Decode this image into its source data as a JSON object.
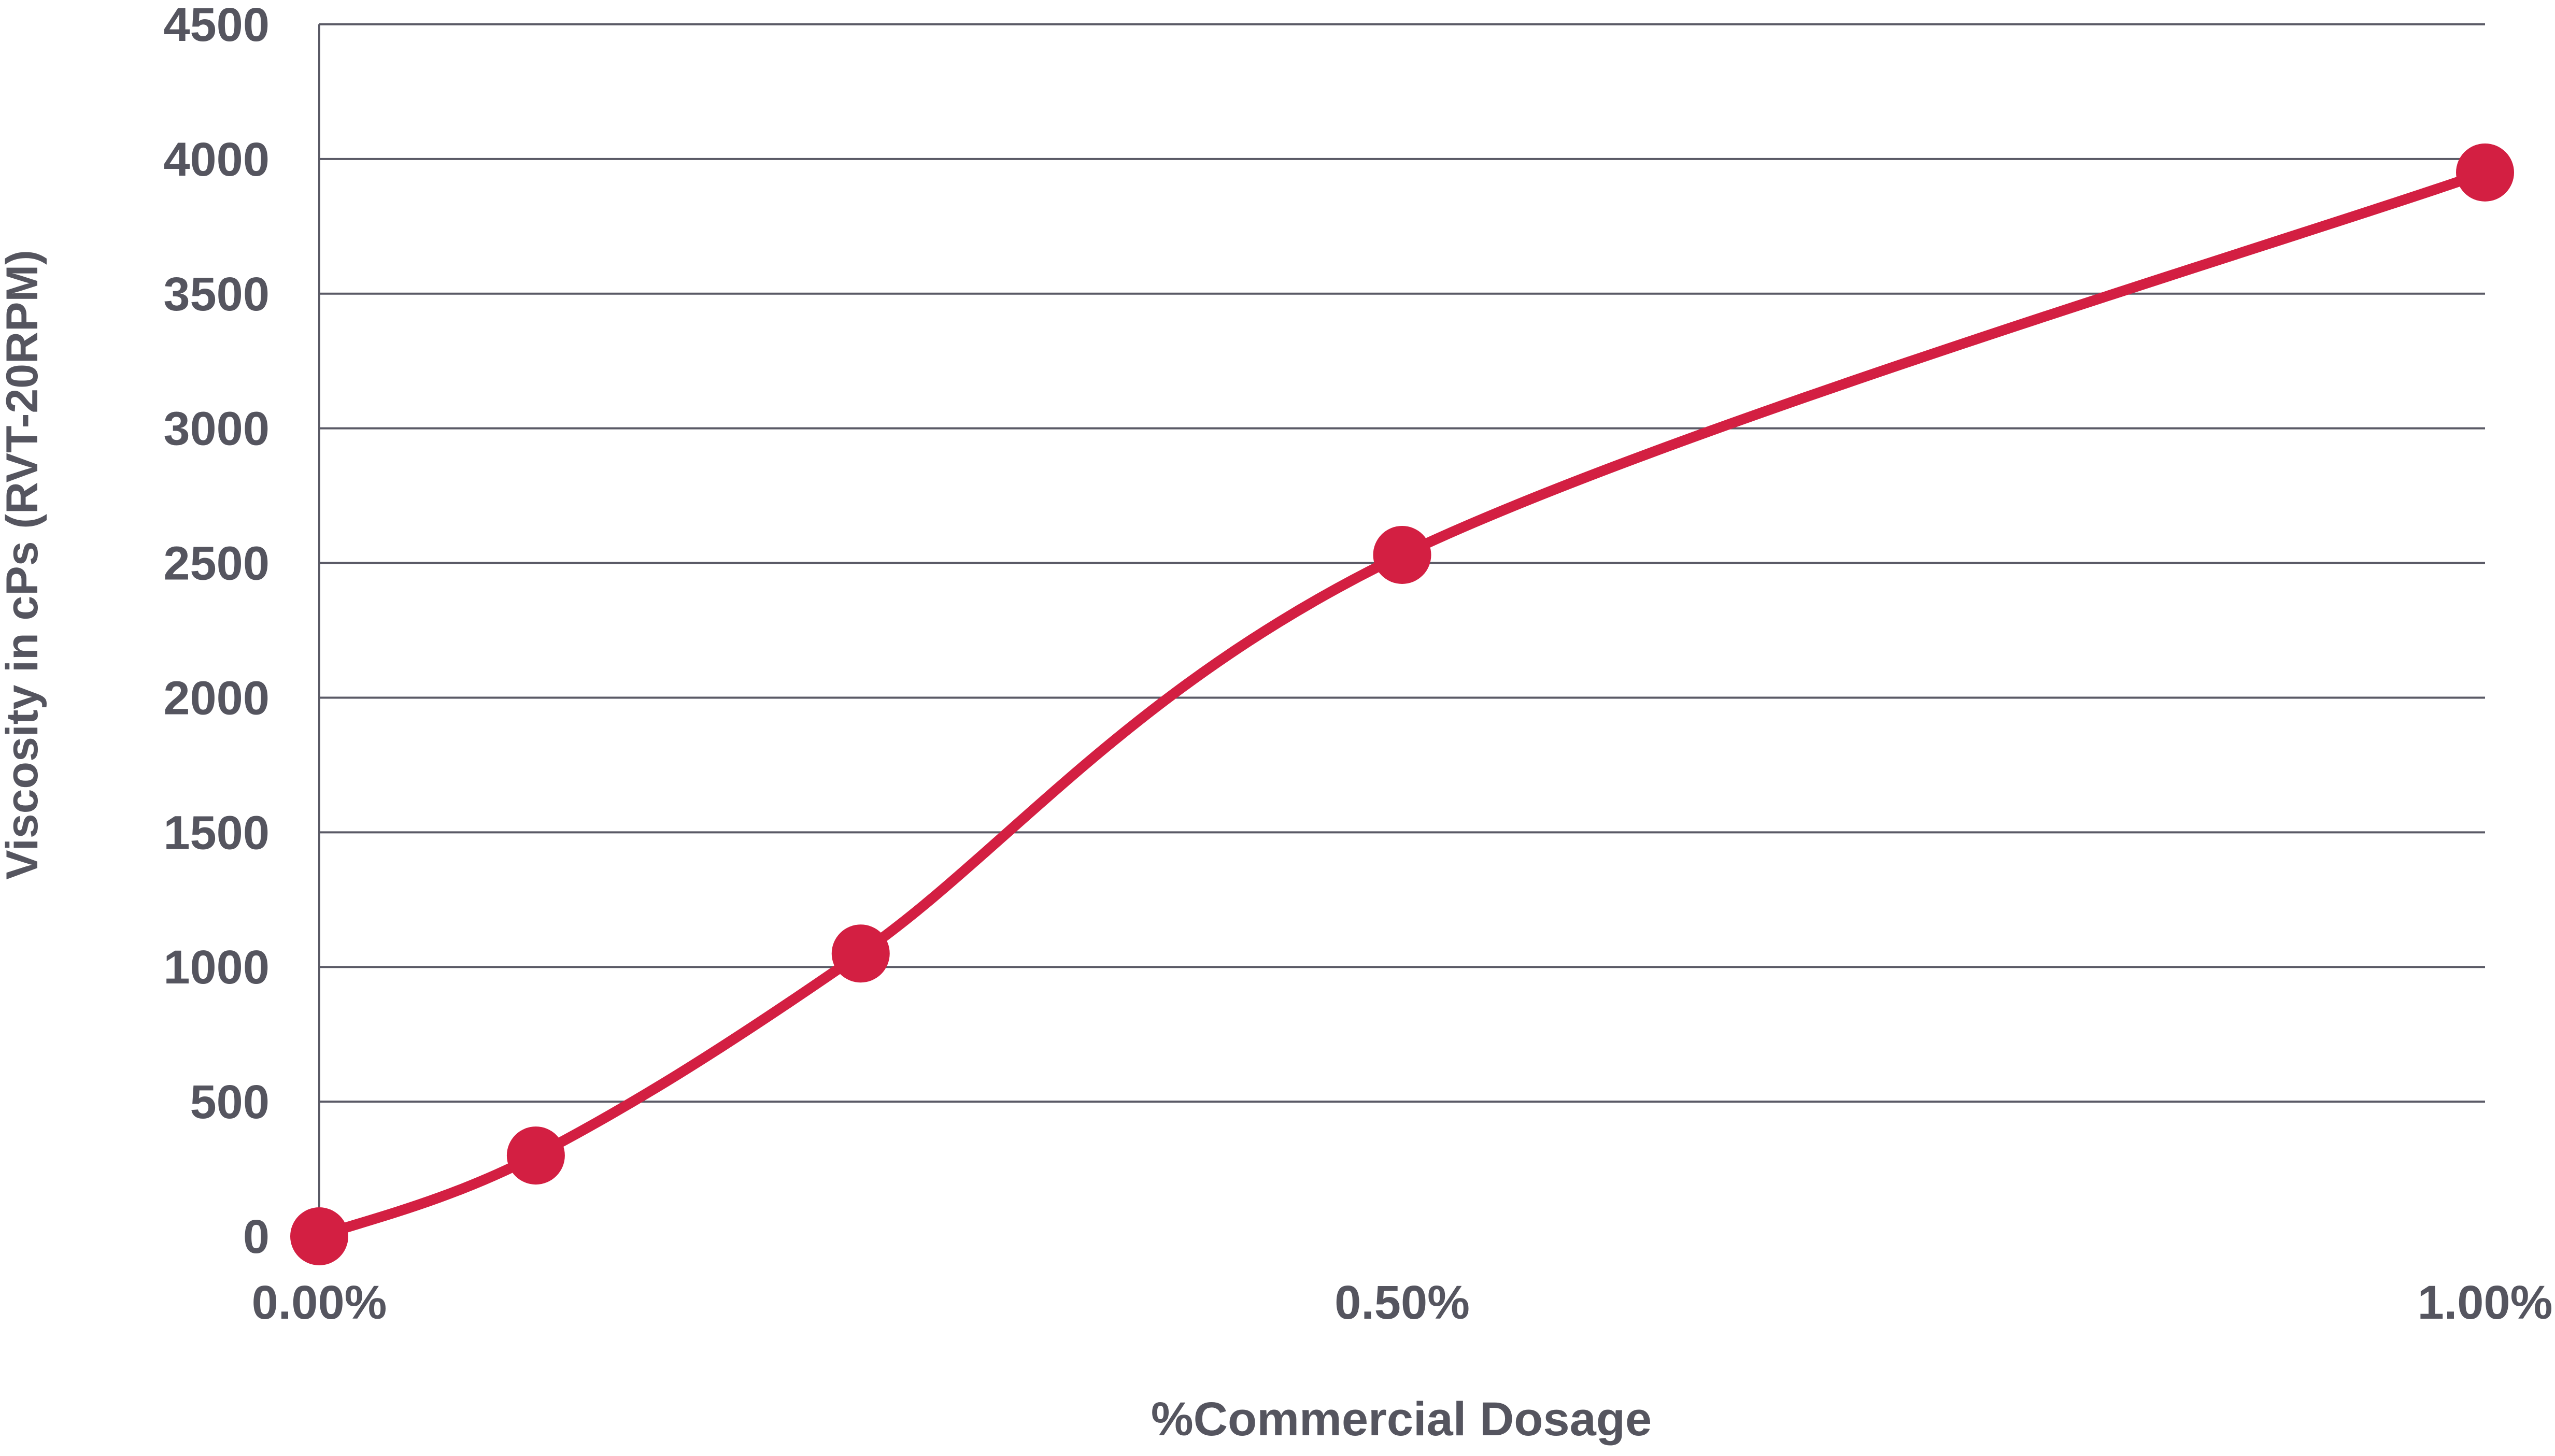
{
  "chart_data": {
    "type": "line",
    "title": "",
    "xlabel": "%Commercial Dosage",
    "ylabel": "Viscosity in cPs (RVT-20RPM)",
    "x": [
      0.0,
      0.1,
      0.25,
      0.5,
      1.0
    ],
    "series": [
      {
        "values": [
          0,
          300,
          1050,
          2530,
          3950
        ],
        "color": "#d31f42",
        "smooth": true,
        "markers": true
      }
    ],
    "xlim": [
      0,
      1.0
    ],
    "ylim": [
      0,
      4500
    ],
    "xticks": [
      "0.00%",
      "0.50%",
      "1.00%"
    ],
    "xtick_values": [
      0,
      0.5,
      1.0
    ],
    "yticks": [
      "0",
      "500",
      "1000",
      "1500",
      "2000",
      "2500",
      "3000",
      "3500",
      "4000",
      "4500"
    ],
    "ytick_values": [
      0,
      500,
      1000,
      1500,
      2000,
      2500,
      3000,
      3500,
      4000,
      4500
    ],
    "grid": "horizontal",
    "legend": "none",
    "grid_color": "#5a5a66"
  }
}
